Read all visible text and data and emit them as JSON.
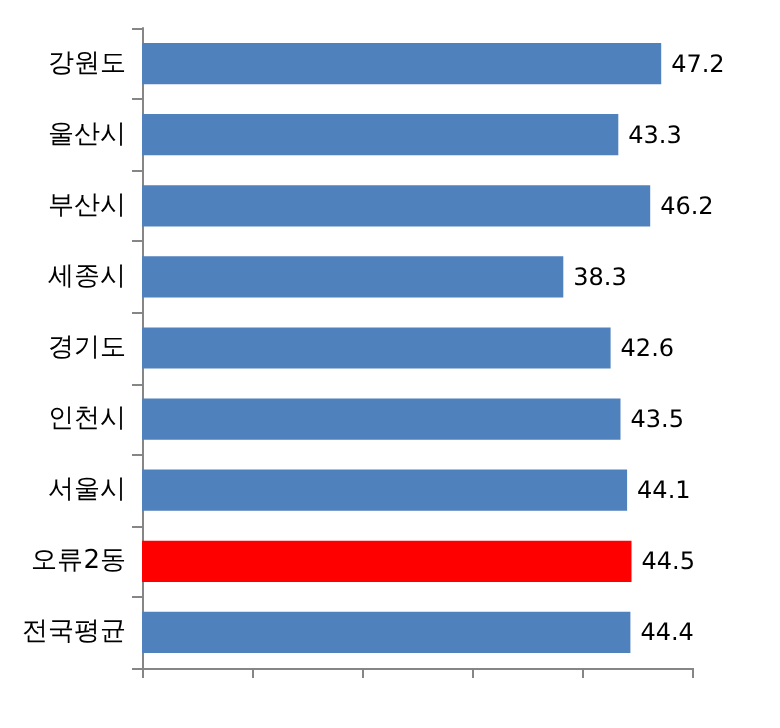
{
  "chart_data": {
    "type": "bar",
    "orientation": "horizontal",
    "categories": [
      "강원도",
      "울산시",
      "부산시",
      "세종시",
      "경기도",
      "인천시",
      "서울시",
      "오류2동",
      "전국평균"
    ],
    "values": [
      47.2,
      43.3,
      46.2,
      38.3,
      42.6,
      43.5,
      44.1,
      44.5,
      44.4
    ],
    "colors": [
      "#4f81bd",
      "#4f81bd",
      "#4f81bd",
      "#4f81bd",
      "#4f81bd",
      "#4f81bd",
      "#4f81bd",
      "#ff0000",
      "#4f81bd"
    ],
    "xlim": [
      0,
      50
    ],
    "xticks": [
      {
        "value": 0,
        "label": null
      },
      {
        "value": 10,
        "label": null
      },
      {
        "value": 20,
        "label": null
      },
      {
        "value": 30,
        "label": null
      },
      {
        "value": 40,
        "label": null
      },
      {
        "value": 50,
        "label": null
      }
    ],
    "tick_labels": "y",
    "data_labels": true
  }
}
